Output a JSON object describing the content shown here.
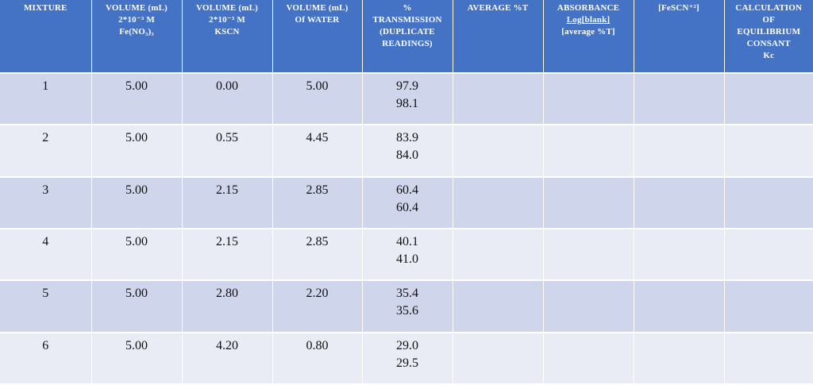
{
  "headers": {
    "mixture": [
      "MIXTURE"
    ],
    "fe_volume": [
      "VOLUME (mL)",
      "2*10⁻³ M",
      "Fe(NO₃)₃"
    ],
    "kscn_volume": [
      "VOLUME (mL)",
      "2*10⁻³ M",
      "KSCN"
    ],
    "water_volume": [
      "VOLUME (mL)",
      "Of WATER"
    ],
    "transmission": [
      "%",
      "TRANSMISSION",
      "(DUPLICATE",
      "READINGS)"
    ],
    "average_t": [
      "AVERAGE %T"
    ],
    "absorbance": [
      "ABSORBANCE",
      "Log[blank]",
      "[average %T]"
    ],
    "fescn": [
      "[FeSCN⁺²]"
    ],
    "kc": [
      "CALCULATION",
      "OF",
      "EQUILIBRIUM",
      "CONSANT",
      "Kc"
    ]
  },
  "rows": [
    {
      "mixture": "1",
      "fe": "5.00",
      "kscn": "0.00",
      "water": "5.00",
      "t1": "97.9",
      "t2": "98.1",
      "avg": "",
      "abs": "",
      "fescn": "",
      "kc": ""
    },
    {
      "mixture": "2",
      "fe": "5.00",
      "kscn": "0.55",
      "water": "4.45",
      "t1": "83.9",
      "t2": "84.0",
      "avg": "",
      "abs": "",
      "fescn": "",
      "kc": ""
    },
    {
      "mixture": "3",
      "fe": "5.00",
      "kscn": "2.15",
      "water": "2.85",
      "t1": "60.4",
      "t2": "60.4",
      "avg": "",
      "abs": "",
      "fescn": "",
      "kc": ""
    },
    {
      "mixture": "4",
      "fe": "5.00",
      "kscn": "2.15",
      "water": "2.85",
      "t1": "40.1",
      "t2": "41.0",
      "avg": "",
      "abs": "",
      "fescn": "",
      "kc": ""
    },
    {
      "mixture": "5",
      "fe": "5.00",
      "kscn": "2.80",
      "water": "2.20",
      "t1": "35.4",
      "t2": "35.6",
      "avg": "",
      "abs": "",
      "fescn": "",
      "kc": ""
    },
    {
      "mixture": "6",
      "fe": "5.00",
      "kscn": "4.20",
      "water": "0.80",
      "t1": "29.0",
      "t2": "29.5",
      "avg": "",
      "abs": "",
      "fescn": "",
      "kc": ""
    }
  ],
  "colors": {
    "header_bg": "#4472c4",
    "row_odd_bg": "#cfd5ea",
    "row_even_bg": "#e9ebf5"
  }
}
